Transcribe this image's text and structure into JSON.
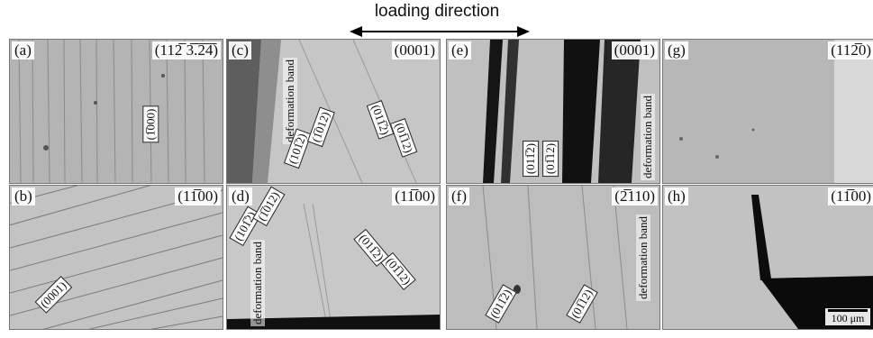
{
  "figure": {
    "loading_label": "loading direction",
    "scale_label": "100 μm",
    "panels": {
      "a": {
        "letter": "(a)",
        "orient": "(112̅ 3̅.̅2̅4̅)",
        "planes": [
          "(1̅000)"
        ]
      },
      "b": {
        "letter": "(b)",
        "orient": "(11̅00)",
        "planes": [
          "(0001)"
        ]
      },
      "c": {
        "letter": "(c)",
        "orient": "(0001)",
        "band": "deformation band",
        "planes": [
          "(101̅2)",
          "(1̅012)",
          "(011̅2)",
          "(01̅12)"
        ]
      },
      "d": {
        "letter": "(d)",
        "orient": "(11̅00)",
        "band": "deformation band",
        "planes": [
          "(101̅2)",
          "(1̅012)",
          "(011̅2)",
          "(01̅12)"
        ]
      },
      "e": {
        "letter": "(e)",
        "orient": "(0001)",
        "band": "deformation band",
        "planes": [
          "(011̅2)",
          "(01̅12)"
        ]
      },
      "f": {
        "letter": "(f)",
        "orient": "(2̅110)",
        "band": "deformation band",
        "planes": [
          "(011̅2)",
          "(01̅12)"
        ]
      },
      "g": {
        "letter": "(g)",
        "orient": "(112̅0)"
      },
      "h": {
        "letter": "(h)",
        "orient": "(11̅00)"
      }
    }
  }
}
